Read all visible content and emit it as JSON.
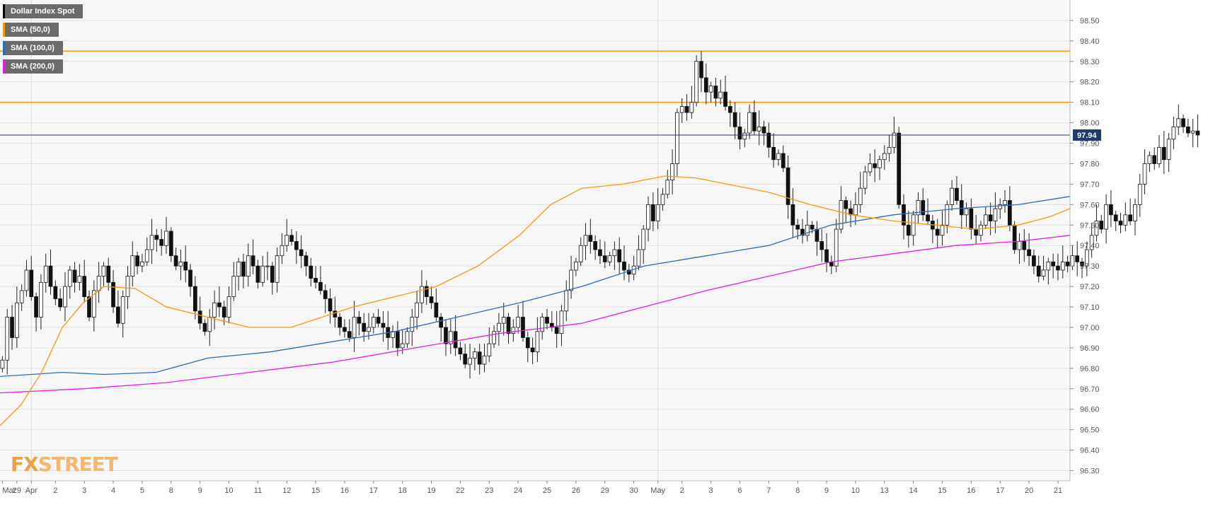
{
  "legend": [
    {
      "label": "Dollar Index Spot",
      "color": "#000000"
    },
    {
      "label": "SMA (50,0)",
      "color": "#f39c12"
    },
    {
      "label": "SMA (100,0)",
      "color": "#2e6db4"
    },
    {
      "label": "SMA (200,0)",
      "color": "#e020e0"
    }
  ],
  "logo": {
    "fx": "FX",
    "street": "STREET"
  },
  "chart_data": {
    "type": "candlestick",
    "title": "Dollar Index Spot",
    "ylim": [
      96.25,
      98.6
    ],
    "y_ticks": [
      96.3,
      96.4,
      96.5,
      96.6,
      96.7,
      96.8,
      96.9,
      97.0,
      97.1,
      97.2,
      97.3,
      97.4,
      97.5,
      97.6,
      97.7,
      97.8,
      97.9,
      98.0,
      98.1,
      98.2,
      98.3,
      98.4,
      98.5
    ],
    "y_tick_labels": [
      "96.30",
      "96.40",
      "96.50",
      "96.60",
      "96.70",
      "96.80",
      "96.90",
      "97.00",
      "97.10",
      "97.20",
      "97.30",
      "97.40",
      "97.50",
      "97.60",
      "97.70",
      "97.80",
      "97.90",
      "98.00",
      "98.10",
      "98.20",
      "98.30",
      "98.40",
      "98.50"
    ],
    "x_labels": [
      "Mar",
      "29",
      "Apr",
      "2",
      "3",
      "4",
      "5",
      "8",
      "9",
      "10",
      "11",
      "12",
      "15",
      "16",
      "17",
      "18",
      "19",
      "22",
      "23",
      "24",
      "25",
      "26",
      "29",
      "30",
      "May",
      "2",
      "3",
      "6",
      "7",
      "8",
      "9",
      "10",
      "13",
      "14",
      "15",
      "16",
      "17",
      "20",
      "21"
    ],
    "x_label_index": [
      0,
      3,
      6,
      11,
      17,
      23,
      29,
      35,
      41,
      47,
      53,
      59,
      65,
      71,
      77,
      83,
      89,
      95,
      101,
      107,
      113,
      119,
      125,
      131,
      136,
      141,
      147,
      153,
      159,
      165,
      171,
      177,
      183,
      189,
      195,
      201,
      207,
      213,
      219
    ],
    "v_lines_index": [
      6,
      136
    ],
    "n_slots": 222,
    "h_lines": [
      {
        "value": 98.35,
        "color": "#f39c12"
      },
      {
        "value": 98.1,
        "color": "#f39c12"
      }
    ],
    "last_price": {
      "value": 97.94,
      "label": "97.94",
      "color": "#1f3a6b"
    },
    "candles": [
      96.84,
      97.05,
      96.95,
      97.12,
      97.18,
      97.28,
      97.15,
      97.05,
      97.22,
      97.3,
      97.2,
      97.14,
      97.1,
      97.2,
      97.28,
      97.22,
      97.25,
      97.15,
      97.05,
      97.18,
      97.25,
      97.3,
      97.22,
      97.1,
      97.02,
      97.15,
      97.25,
      97.35,
      97.3,
      97.32,
      97.38,
      97.45,
      97.43,
      97.4,
      97.47,
      97.35,
      97.3,
      97.32,
      97.28,
      97.2,
      97.08,
      97.02,
      96.98,
      97.05,
      97.12,
      97.1,
      97.05,
      97.15,
      97.25,
      97.32,
      97.25,
      97.35,
      97.3,
      97.22,
      97.3,
      97.3,
      97.22,
      97.35,
      97.4,
      97.45,
      97.42,
      97.38,
      97.35,
      97.3,
      97.24,
      97.22,
      97.18,
      97.14,
      97.08,
      97.05,
      97.0,
      96.98,
      96.95,
      97.05,
      97.02,
      96.98,
      97.0,
      97.05,
      97.02,
      97.0,
      96.95,
      96.98,
      96.9,
      96.92,
      96.98,
      97.05,
      97.12,
      97.2,
      97.15,
      97.12,
      97.05,
      97.0,
      96.92,
      96.98,
      96.9,
      96.87,
      96.82,
      96.85,
      96.88,
      96.82,
      96.86,
      96.92,
      96.98,
      97.02,
      97.05,
      96.97,
      97.0,
      97.05,
      96.95,
      96.9,
      96.88,
      96.98,
      97.05,
      97.02,
      97.0,
      96.97,
      97.08,
      97.18,
      97.28,
      97.32,
      97.4,
      97.45,
      97.42,
      97.38,
      97.35,
      97.32,
      97.35,
      97.38,
      97.32,
      97.28,
      97.26,
      97.3,
      97.38,
      97.48,
      97.6,
      97.52,
      97.6,
      97.65,
      97.72,
      97.8,
      98.05,
      98.08,
      98.05,
      98.1,
      98.3,
      98.22,
      98.15,
      98.18,
      98.12,
      98.15,
      98.08,
      98.05,
      97.98,
      97.92,
      97.95,
      98.05,
      97.96,
      97.98,
      97.95,
      97.88,
      97.82,
      97.85,
      97.78,
      97.6,
      97.5,
      97.48,
      97.45,
      97.5,
      97.48,
      97.42,
      97.38,
      97.32,
      97.3,
      97.48,
      97.62,
      97.58,
      97.55,
      97.6,
      97.68,
      97.76,
      97.8,
      97.78,
      97.82,
      97.85,
      97.88,
      97.95,
      97.6,
      97.5,
      97.45,
      97.55,
      97.62,
      97.55,
      97.52,
      97.48,
      97.45,
      97.5,
      97.6,
      97.68,
      97.62,
      97.55,
      97.58,
      97.48,
      97.45,
      97.5,
      97.55,
      97.52,
      97.58,
      97.6,
      97.62,
      97.5,
      97.38,
      97.42,
      97.38,
      97.35,
      97.3,
      97.25,
      97.28,
      97.32,
      97.3,
      97.28,
      97.32,
      97.3,
      97.35,
      97.32,
      97.3,
      97.38,
      97.45,
      97.52,
      97.48,
      97.6,
      97.55,
      97.52,
      97.5,
      97.55,
      97.52,
      97.6,
      97.7,
      97.8,
      97.84,
      97.8,
      97.88,
      97.82,
      97.92,
      97.98,
      98.02,
      97.98,
      97.95,
      97.96,
      97.94
    ],
    "sma50": [
      [
        0,
        96.52
      ],
      [
        20,
        96.62
      ],
      [
        40,
        96.78
      ],
      [
        60,
        97.0
      ],
      [
        80,
        97.12
      ],
      [
        100,
        97.2
      ],
      [
        130,
        97.19
      ],
      [
        160,
        97.1
      ],
      [
        200,
        97.05
      ],
      [
        240,
        97.0
      ],
      [
        280,
        97.0
      ],
      [
        310,
        97.05
      ],
      [
        340,
        97.1
      ],
      [
        380,
        97.15
      ],
      [
        420,
        97.2
      ],
      [
        460,
        97.3
      ],
      [
        500,
        97.45
      ],
      [
        530,
        97.6
      ],
      [
        560,
        97.68
      ],
      [
        600,
        97.7
      ],
      [
        640,
        97.74
      ],
      [
        670,
        97.73
      ],
      [
        700,
        97.7
      ],
      [
        740,
        97.66
      ],
      [
        780,
        97.6
      ],
      [
        820,
        97.55
      ],
      [
        860,
        97.52
      ],
      [
        900,
        97.5
      ],
      [
        940,
        97.48
      ],
      [
        980,
        97.5
      ],
      [
        1010,
        97.54
      ],
      [
        1030,
        97.58
      ]
    ],
    "sma100": [
      [
        0,
        96.76
      ],
      [
        60,
        96.78
      ],
      [
        100,
        96.77
      ],
      [
        150,
        96.78
      ],
      [
        200,
        96.85
      ],
      [
        260,
        96.88
      ],
      [
        320,
        96.93
      ],
      [
        380,
        96.98
      ],
      [
        440,
        97.05
      ],
      [
        500,
        97.12
      ],
      [
        560,
        97.2
      ],
      [
        620,
        97.3
      ],
      [
        680,
        97.35
      ],
      [
        740,
        97.4
      ],
      [
        800,
        97.5
      ],
      [
        860,
        97.55
      ],
      [
        920,
        97.58
      ],
      [
        980,
        97.6
      ],
      [
        1030,
        97.64
      ]
    ],
    "sma200": [
      [
        0,
        96.68
      ],
      [
        80,
        96.7
      ],
      [
        160,
        96.73
      ],
      [
        240,
        96.78
      ],
      [
        320,
        96.83
      ],
      [
        400,
        96.9
      ],
      [
        480,
        96.97
      ],
      [
        560,
        97.02
      ],
      [
        620,
        97.1
      ],
      [
        680,
        97.18
      ],
      [
        740,
        97.25
      ],
      [
        800,
        97.32
      ],
      [
        860,
        97.36
      ],
      [
        920,
        97.4
      ],
      [
        980,
        97.42
      ],
      [
        1030,
        97.45
      ]
    ]
  }
}
